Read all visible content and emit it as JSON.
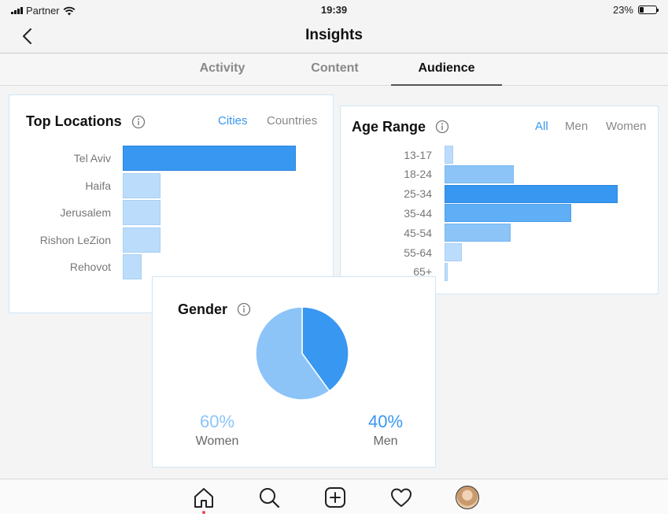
{
  "status": {
    "carrier": "Partner",
    "time": "19:39",
    "battery": "23%",
    "battery_level": 0.23
  },
  "header": {
    "title": "Insights"
  },
  "tabs": [
    {
      "label": "Activity"
    },
    {
      "label": "Content"
    },
    {
      "label": "Audience"
    }
  ],
  "active_tab": "Audience",
  "colors": {
    "accent": "#3897f0",
    "bar_primary": "#3897f0",
    "bar_light": "#bcdcfb",
    "bar_mid": "#8cc4f8"
  },
  "locations": {
    "title": "Top Locations",
    "toggles": [
      "Cities",
      "Countries"
    ],
    "active_toggle": "Cities",
    "chart_data": {
      "type": "bar",
      "orientation": "horizontal",
      "categories": [
        "Tel Aviv",
        "Haifa",
        "Jerusalem",
        "Rishon LeZion",
        "Rehovot"
      ],
      "values": [
        100,
        22,
        22,
        22,
        11
      ],
      "ylim": [
        0,
        100
      ]
    }
  },
  "age": {
    "title": "Age Range",
    "toggles": [
      "All",
      "Men",
      "Women"
    ],
    "active_toggle": "All",
    "chart_data": {
      "type": "bar",
      "orientation": "horizontal",
      "categories": [
        "13-17",
        "18-24",
        "25-34",
        "35-44",
        "45-54",
        "55-64",
        "65+"
      ],
      "values": [
        5,
        40,
        100,
        73,
        38,
        10,
        2
      ],
      "ylim": [
        0,
        100
      ]
    }
  },
  "gender": {
    "title": "Gender",
    "women": {
      "label": "Women",
      "pct": "60%"
    },
    "men": {
      "label": "Men",
      "pct": "40%"
    },
    "chart_data": {
      "type": "pie",
      "categories": [
        "Men",
        "Women"
      ],
      "values": [
        40,
        60
      ]
    }
  },
  "tabbar": {
    "icons": [
      "home-icon",
      "search-icon",
      "add-icon",
      "heart-icon",
      "profile-avatar"
    ]
  }
}
